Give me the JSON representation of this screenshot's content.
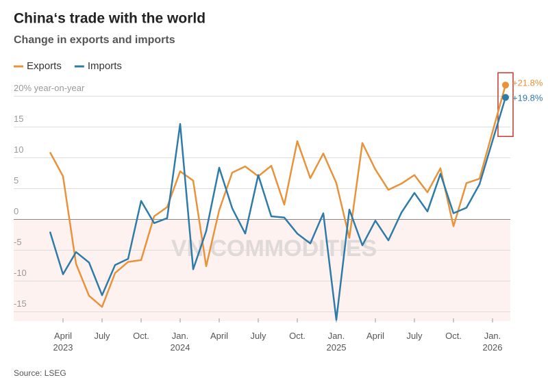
{
  "chart_data": {
    "type": "line",
    "title": "China‘s trade with the world",
    "subtitle": "Change in exports and imports",
    "source": "Source: LSEG",
    "watermark": "VN COMMODITIES",
    "x": [
      "2023-03",
      "2023-04",
      "2023-05",
      "2023-06",
      "2023-07",
      "2023-08",
      "2023-09",
      "2023-10",
      "2023-11",
      "2023-12",
      "2024-01",
      "2024-02",
      "2024-03",
      "2024-04",
      "2024-05",
      "2024-06",
      "2024-07",
      "2024-08",
      "2024-09",
      "2024-10",
      "2024-11",
      "2024-12",
      "2025-01",
      "2025-02",
      "2025-03",
      "2025-04",
      "2025-05",
      "2025-06",
      "2025-07",
      "2025-08",
      "2025-09",
      "2025-10",
      "2025-11",
      "2025-12",
      "2026-02"
    ],
    "series": [
      {
        "name": "Exports",
        "color": "#e8923a",
        "values": [
          10.9,
          7.0,
          -7.2,
          -12.4,
          -14.2,
          -8.7,
          -6.9,
          -6.6,
          0.5,
          2.0,
          7.8,
          6.3,
          -7.6,
          1.5,
          7.6,
          8.6,
          7.0,
          8.7,
          2.4,
          12.7,
          6.7,
          10.7,
          5.9,
          -3.0,
          12.4,
          8.1,
          4.8,
          5.8,
          7.2,
          4.4,
          8.3,
          -1.1,
          5.9,
          6.6,
          21.8
        ],
        "value_labels": [
          null,
          null,
          null,
          null,
          null,
          null,
          null,
          null,
          null,
          null,
          null,
          null,
          null,
          null,
          null,
          null,
          null,
          null,
          null,
          null,
          null,
          null,
          null,
          null,
          null,
          null,
          null,
          null,
          null,
          null,
          null,
          null,
          null,
          null,
          "+21.8%"
        ]
      },
      {
        "name": "Imports",
        "color": "#2f7ba8",
        "values": [
          -2.0,
          -8.9,
          -5.3,
          -7.0,
          -12.3,
          -7.4,
          -6.4,
          3.0,
          -0.6,
          0.2,
          15.5,
          -8.1,
          -1.9,
          8.4,
          1.8,
          -2.3,
          7.2,
          0.5,
          0.3,
          -2.3,
          -3.9,
          1.0,
          -16.3,
          1.6,
          -4.2,
          -0.2,
          -3.4,
          1.1,
          4.3,
          1.3,
          7.4,
          1.0,
          1.9,
          5.7,
          19.8
        ],
        "value_labels": [
          null,
          null,
          null,
          null,
          null,
          null,
          null,
          null,
          null,
          null,
          null,
          null,
          null,
          null,
          null,
          null,
          null,
          null,
          null,
          null,
          null,
          null,
          null,
          null,
          null,
          null,
          null,
          null,
          null,
          null,
          null,
          null,
          null,
          null,
          "+19.8%"
        ]
      }
    ],
    "xlim": [
      "2022-12",
      "2026-03"
    ],
    "xticks": [
      {
        "value": "2023-04",
        "label": "April\n2023"
      },
      {
        "value": "2023-07",
        "label": "July"
      },
      {
        "value": "2023-10",
        "label": "Oct."
      },
      {
        "value": "2024-01",
        "label": "Jan.\n2024"
      },
      {
        "value": "2024-04",
        "label": "April"
      },
      {
        "value": "2024-07",
        "label": "July"
      },
      {
        "value": "2024-10",
        "label": "Oct."
      },
      {
        "value": "2025-01",
        "label": "Jan.\n2025"
      },
      {
        "value": "2025-04",
        "label": "April"
      },
      {
        "value": "2025-07",
        "label": "July"
      },
      {
        "value": "2025-10",
        "label": "Oct."
      },
      {
        "value": "2026-01",
        "label": "Jan.\n2026"
      }
    ],
    "ylim": [
      -16.5,
      22.5
    ],
    "yticks": [
      {
        "value": 20,
        "label": "20% year-on-year"
      },
      15,
      10,
      5,
      0,
      -5,
      -10,
      -15
    ],
    "grid": true
  }
}
